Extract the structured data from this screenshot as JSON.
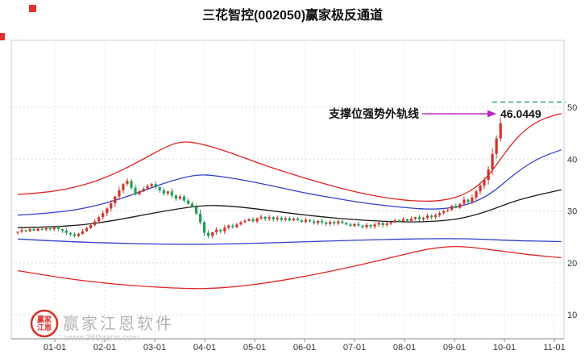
{
  "title": "三花智控(002050)赢家极反通道",
  "annotation": {
    "label": "支撑位强势外轨线",
    "value": "46.0449"
  },
  "watermark": {
    "brand": "赢家江恩软件",
    "url": "www.360gann.com",
    "logo_line1": "赢家",
    "logo_line2": "江恩"
  },
  "axes": {
    "x_labels": [
      "01-01",
      "02-01",
      "03-01",
      "04-01",
      "05-01",
      "06-01",
      "07-01",
      "08-01",
      "09-01",
      "10-01",
      "11-01"
    ],
    "y_ticks": [
      50,
      40,
      30,
      20,
      10
    ]
  },
  "colors": {
    "candle_up": "#cf342b",
    "candle_down": "#1d9e57",
    "outer_red": "#e02424",
    "inner_blue": "#3340cc",
    "middle_black": "#1a1a1a",
    "dashed_green": "#1ca05c",
    "arrow_magenta": "#c026c0",
    "marker_red": "#e03131"
  },
  "chart_data": {
    "type": "candlestick",
    "title": "三花智控(002050)赢家极反通道",
    "stock_name": "三花智控",
    "stock_code": "002050",
    "indicator": "赢家极反通道",
    "x_tick_labels": [
      "01-01",
      "02-01",
      "03-01",
      "04-01",
      "05-01",
      "06-01",
      "07-01",
      "08-01",
      "09-01",
      "10-01",
      "11-01"
    ],
    "y_ticks": [
      50,
      40,
      30,
      20,
      10
    ],
    "ylim": [
      5,
      62
    ],
    "grid": true,
    "annotation_label": "支撑位强势外轨线",
    "annotation_value": 46.0449,
    "dashed_level": 51,
    "candles": {
      "first_open": 25.8,
      "closes": [
        26.0,
        26.3,
        26.1,
        26.5,
        26.2,
        26.6,
        26.4,
        26.7,
        26.5,
        26.8,
        26.5,
        26.2,
        25.8,
        25.5,
        25.2,
        25.6,
        26.1,
        26.7,
        27.3,
        28.0,
        28.8,
        29.6,
        30.5,
        31.5,
        32.8,
        34.0,
        35.2,
        35.8,
        34.5,
        33.2,
        33.8,
        34.3,
        34.8,
        35.2,
        34.6,
        34.0,
        33.4,
        33.8,
        33.0,
        32.4,
        32.8,
        32.0,
        31.4,
        30.8,
        29.5,
        27.8,
        25.8,
        25.2,
        25.9,
        26.4,
        26.1,
        26.8,
        27.2,
        26.9,
        27.4,
        27.8,
        28.1,
        28.4,
        28.0,
        28.6,
        28.9,
        28.5,
        28.8,
        28.4,
        28.7,
        28.3,
        28.6,
        28.2,
        28.5,
        28.2,
        27.9,
        28.3,
        28.0,
        27.7,
        28.1,
        27.8,
        27.5,
        27.9,
        27.6,
        28.0,
        27.7,
        27.4,
        27.1,
        27.5,
        27.2,
        26.9,
        27.3,
        27.0,
        27.4,
        27.7,
        27.3,
        27.6,
        27.9,
        28.2,
        28.0,
        28.4,
        28.1,
        28.5,
        28.8,
        28.4,
        28.7,
        29.1,
        28.8,
        29.2,
        29.6,
        30.0,
        30.2,
        31.0,
        30.6,
        31.4,
        32.2,
        31.8,
        32.6,
        33.8,
        34.9,
        36.0,
        38.0,
        41.0,
        44.0,
        46.9
      ]
    },
    "lines": [
      {
        "id": "upper-outer-red-line",
        "color": "outer_red",
        "points": [
          [
            0,
            33.2
          ],
          [
            6,
            33.5
          ],
          [
            12,
            34.2
          ],
          [
            18,
            35.4
          ],
          [
            24,
            37.2
          ],
          [
            30,
            39.6
          ],
          [
            36,
            42.2
          ],
          [
            40,
            43.4
          ],
          [
            44,
            43.2
          ],
          [
            50,
            41.9
          ],
          [
            56,
            40.2
          ],
          [
            62,
            38.5
          ],
          [
            68,
            37.0
          ],
          [
            74,
            35.6
          ],
          [
            80,
            34.3
          ],
          [
            86,
            33.2
          ],
          [
            92,
            32.4
          ],
          [
            98,
            31.9
          ],
          [
            103,
            31.9
          ],
          [
            107,
            32.4
          ],
          [
            110,
            33.2
          ],
          [
            113,
            34.6
          ],
          [
            116,
            36.8
          ],
          [
            119,
            40.0
          ],
          [
            122,
            43.2
          ],
          [
            125,
            45.6
          ],
          [
            128,
            47.2
          ],
          [
            131,
            48.2
          ],
          [
            134,
            48.8
          ]
        ]
      },
      {
        "id": "upper-inner-blue-line",
        "color": "inner_blue",
        "points": [
          [
            0,
            29.2
          ],
          [
            8,
            29.6
          ],
          [
            16,
            30.4
          ],
          [
            24,
            32.0
          ],
          [
            32,
            34.2
          ],
          [
            38,
            35.9
          ],
          [
            44,
            37.0
          ],
          [
            48,
            36.9
          ],
          [
            54,
            36.2
          ],
          [
            60,
            35.3
          ],
          [
            66,
            34.3
          ],
          [
            72,
            33.3
          ],
          [
            78,
            32.5
          ],
          [
            84,
            31.7
          ],
          [
            90,
            31.1
          ],
          [
            96,
            30.6
          ],
          [
            102,
            30.3
          ],
          [
            107,
            30.6
          ],
          [
            111,
            31.3
          ],
          [
            115,
            32.6
          ],
          [
            118,
            34.2
          ],
          [
            121,
            36.2
          ],
          [
            125,
            38.6
          ],
          [
            129,
            40.4
          ],
          [
            134,
            41.8
          ]
        ]
      },
      {
        "id": "middle-black-line",
        "color": "middle_black",
        "points": [
          [
            0,
            26.8
          ],
          [
            8,
            26.9
          ],
          [
            16,
            27.3
          ],
          [
            24,
            28.2
          ],
          [
            32,
            29.4
          ],
          [
            40,
            30.5
          ],
          [
            46,
            31.1
          ],
          [
            52,
            31.0
          ],
          [
            58,
            30.5
          ],
          [
            64,
            29.9
          ],
          [
            70,
            29.3
          ],
          [
            76,
            28.8
          ],
          [
            82,
            28.4
          ],
          [
            88,
            28.1
          ],
          [
            94,
            27.9
          ],
          [
            100,
            27.9
          ],
          [
            106,
            28.2
          ],
          [
            110,
            28.7
          ],
          [
            114,
            29.5
          ],
          [
            118,
            30.6
          ],
          [
            122,
            31.8
          ],
          [
            127,
            32.9
          ],
          [
            134,
            34.1
          ]
        ]
      },
      {
        "id": "lower-inner-blue-line",
        "color": "inner_blue",
        "points": [
          [
            0,
            24.6
          ],
          [
            12,
            24.1
          ],
          [
            24,
            23.8
          ],
          [
            36,
            23.6
          ],
          [
            48,
            23.6
          ],
          [
            60,
            23.8
          ],
          [
            72,
            24.1
          ],
          [
            84,
            24.4
          ],
          [
            96,
            24.6
          ],
          [
            106,
            24.7
          ],
          [
            114,
            24.6
          ],
          [
            122,
            24.3
          ],
          [
            134,
            24.1
          ]
        ]
      },
      {
        "id": "lower-outer-red-line",
        "color": "outer_red",
        "points": [
          [
            0,
            18.5
          ],
          [
            10,
            17.2
          ],
          [
            20,
            16.2
          ],
          [
            30,
            15.5
          ],
          [
            40,
            15.1
          ],
          [
            46,
            15.0
          ],
          [
            54,
            15.4
          ],
          [
            62,
            16.2
          ],
          [
            70,
            17.3
          ],
          [
            78,
            18.5
          ],
          [
            86,
            19.9
          ],
          [
            94,
            21.4
          ],
          [
            100,
            22.5
          ],
          [
            104,
            23.0
          ],
          [
            108,
            23.2
          ],
          [
            112,
            23.0
          ],
          [
            116,
            22.6
          ],
          [
            121,
            22.1
          ],
          [
            127,
            21.5
          ],
          [
            134,
            21.0
          ]
        ]
      }
    ]
  }
}
